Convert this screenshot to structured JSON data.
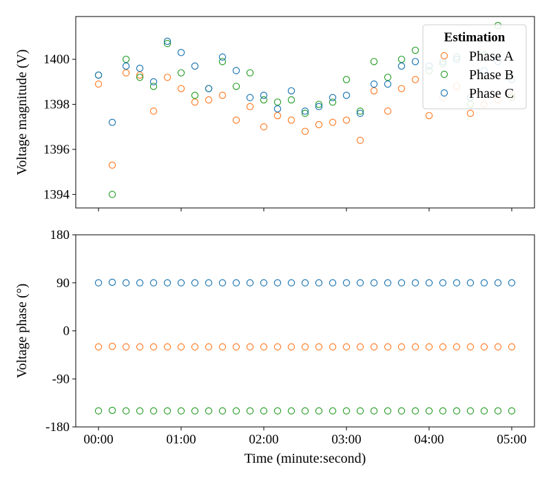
{
  "chart_data": [
    {
      "type": "scatter",
      "panel": "top",
      "ylabel": "Voltage magnitude (V)",
      "xlabel": "",
      "ylim": [
        1393.4,
        1401.9
      ],
      "xlim": [
        -0.55,
        10.55
      ],
      "yticks": [
        1394,
        1396,
        1398,
        1400
      ],
      "xticks": [
        0,
        2,
        4,
        6,
        8,
        10
      ],
      "x_tick_labels_shown": false,
      "legend": {
        "title": "Estimation",
        "placement": "top-right",
        "entries": [
          "Phase A",
          "Phase B",
          "Phase C"
        ]
      },
      "x": [
        0,
        0.333,
        0.667,
        1,
        1.333,
        1.667,
        2,
        2.333,
        2.667,
        3,
        3.333,
        3.667,
        4,
        4.333,
        4.667,
        5,
        5.333,
        5.667,
        6,
        6.333,
        6.667,
        7,
        7.333,
        7.667,
        8,
        8.333,
        8.667,
        9,
        9.333,
        9.667,
        10
      ],
      "series": [
        {
          "name": "Phase A",
          "color": "#ff7f2a",
          "values": [
            1398.9,
            1395.3,
            1399.4,
            1399.3,
            1397.7,
            1399.2,
            1398.7,
            1398.1,
            1398.2,
            1398.4,
            1397.3,
            1397.9,
            1397.0,
            1397.5,
            1397.3,
            1396.8,
            1397.1,
            1397.2,
            1397.3,
            1396.4,
            1398.6,
            1397.7,
            1398.7,
            1399.1,
            1397.5,
            1398.3,
            1398.8,
            1397.6,
            1398.0,
            1398.2,
            1398.4
          ]
        },
        {
          "name": "Phase B",
          "color": "#2ca02c",
          "values": [
            1399.3,
            1394.0,
            1400.0,
            1399.2,
            1398.8,
            1400.7,
            1399.4,
            1398.4,
            1398.7,
            1399.9,
            1398.8,
            1399.4,
            1398.2,
            1398.1,
            1398.2,
            1397.6,
            1398.0,
            1398.1,
            1399.1,
            1397.7,
            1399.9,
            1399.2,
            1400.0,
            1400.4,
            1399.5,
            1399.8,
            1400.1,
            1398.0,
            1400.2,
            1401.5,
            1398.3
          ]
        },
        {
          "name": "Phase C",
          "color": "#1f77b4",
          "values": [
            1399.3,
            1397.2,
            1399.7,
            1399.6,
            1399.0,
            1400.8,
            1400.3,
            1399.7,
            1398.7,
            1400.1,
            1399.5,
            1398.3,
            1398.4,
            1397.8,
            1398.6,
            1397.7,
            1397.9,
            1398.3,
            1398.4,
            1397.6,
            1398.9,
            1398.9,
            1399.7,
            1399.9,
            1399.7,
            1399.9,
            1400.0,
            1398.3,
            1399.5,
            1399.9,
            1399.1
          ]
        }
      ]
    },
    {
      "type": "scatter",
      "panel": "bottom",
      "ylabel": "Voltage phase (°)",
      "xlabel": "Time (minute:second)",
      "ylim": [
        -180,
        180
      ],
      "xlim": [
        -0.55,
        10.55
      ],
      "yticks": [
        -180,
        -90,
        0,
        90,
        180
      ],
      "xticks": [
        0,
        2,
        4,
        6,
        8,
        10
      ],
      "x_tick_labels": [
        "00:00",
        "01:00",
        "02:00",
        "03:00",
        "04:00",
        "05:00"
      ],
      "x": [
        0,
        0.333,
        0.667,
        1,
        1.333,
        1.667,
        2,
        2.333,
        2.667,
        3,
        3.333,
        3.667,
        4,
        4.333,
        4.667,
        5,
        5.333,
        5.667,
        6,
        6.333,
        6.667,
        7,
        7.333,
        7.667,
        8,
        8.333,
        8.667,
        9,
        9.333,
        9.667,
        10
      ],
      "series": [
        {
          "name": "Phase A",
          "color": "#ff7f2a",
          "values": [
            -30,
            -29,
            -30,
            -30,
            -30,
            -30,
            -30,
            -30,
            -30,
            -30,
            -30,
            -30,
            -30,
            -30,
            -30,
            -30,
            -30,
            -30,
            -30,
            -30,
            -30,
            -30,
            -30,
            -30,
            -30,
            -30,
            -30,
            -30,
            -30,
            -30,
            -30
          ]
        },
        {
          "name": "Phase B",
          "color": "#2ca02c",
          "values": [
            -150,
            -149,
            -150,
            -150,
            -150,
            -150,
            -150,
            -150,
            -150,
            -150,
            -150,
            -150,
            -150,
            -150,
            -150,
            -150,
            -150,
            -150,
            -150,
            -150,
            -150,
            -150,
            -150,
            -150,
            -150,
            -150,
            -150,
            -150,
            -150,
            -150,
            -150
          ]
        },
        {
          "name": "Phase C",
          "color": "#1f77b4",
          "values": [
            90,
            91,
            90,
            90,
            90,
            90,
            90,
            90,
            90,
            90,
            90,
            90,
            90,
            90,
            90,
            90,
            90,
            90,
            90,
            90,
            90,
            90,
            90,
            90,
            90,
            90,
            90,
            90,
            90,
            90,
            90
          ]
        }
      ]
    }
  ]
}
